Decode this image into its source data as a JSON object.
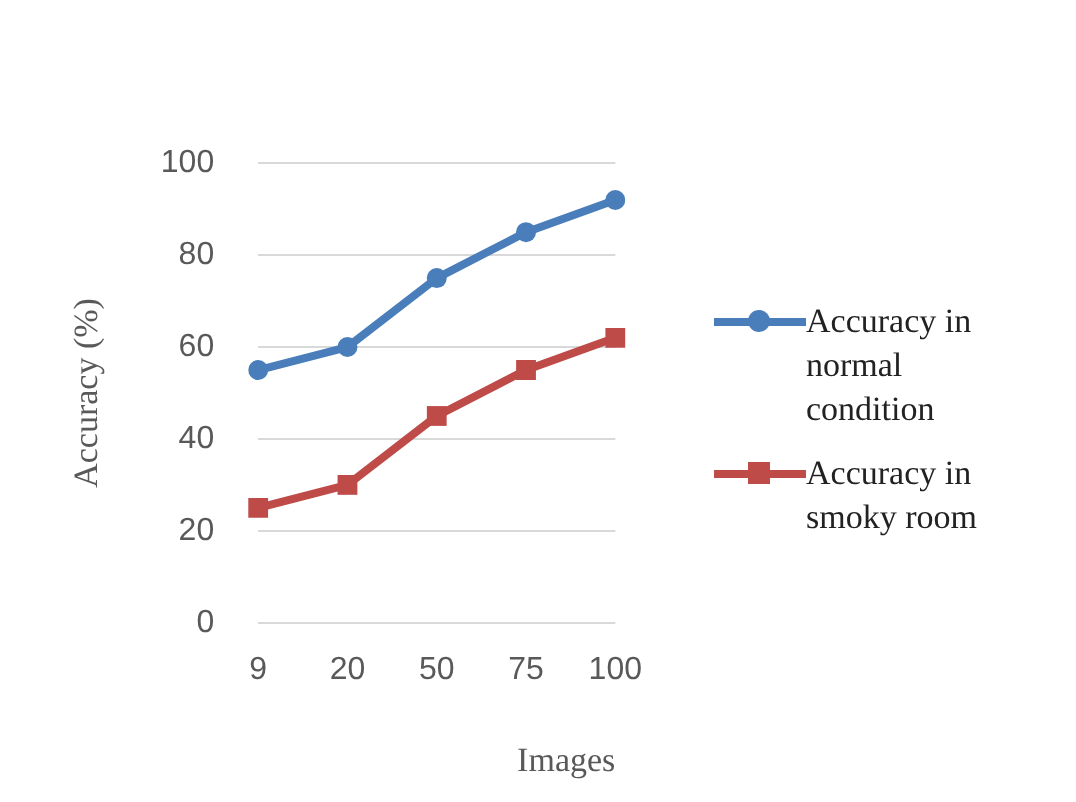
{
  "chart_data": {
    "type": "line",
    "xlabel": "Images",
    "ylabel": "Accuracy (%)",
    "categories": [
      "9",
      "20",
      "50",
      "75",
      "100"
    ],
    "series": [
      {
        "name": "Accuracy in normal condition",
        "color": "#4a7ebb",
        "marker": "circle",
        "values": [
          55,
          60,
          75,
          85,
          92
        ]
      },
      {
        "name": "Accuracy in smoky room",
        "color": "#be4b48",
        "marker": "square",
        "values": [
          25,
          30,
          45,
          55,
          62
        ]
      }
    ],
    "ylim": [
      0,
      100
    ],
    "yticks": [
      0,
      20,
      40,
      60,
      80,
      100
    ],
    "grid": "y",
    "legend": "right"
  }
}
